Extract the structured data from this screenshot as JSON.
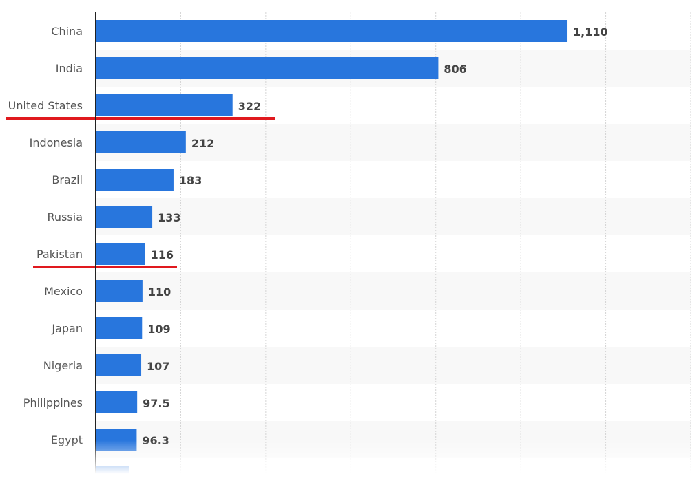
{
  "chart_data": {
    "type": "bar",
    "orientation": "horizontal",
    "categories": [
      "China",
      "India",
      "United States",
      "Indonesia",
      "Brazil",
      "Russia",
      "Pakistan",
      "Mexico",
      "Japan",
      "Nigeria",
      "Philippines",
      "Egypt"
    ],
    "values": [
      1110,
      806,
      322,
      212,
      183,
      133,
      116,
      110,
      109,
      107,
      97.5,
      96.3
    ],
    "value_labels": [
      "1,110",
      "806",
      "322",
      "212",
      "183",
      "133",
      "116",
      "110",
      "109",
      "107",
      "97.5",
      "96.3"
    ],
    "partially_hidden_value": 78,
    "xlim": [
      0,
      1400
    ],
    "grid_step": 200,
    "grid": true,
    "highlighted": [
      "United States",
      "Pakistan"
    ],
    "colors": {
      "bar": "#2876dd",
      "highlight": "#e0191e",
      "band": "#f8f8f8",
      "value": "#444444",
      "label": "#555555"
    }
  }
}
